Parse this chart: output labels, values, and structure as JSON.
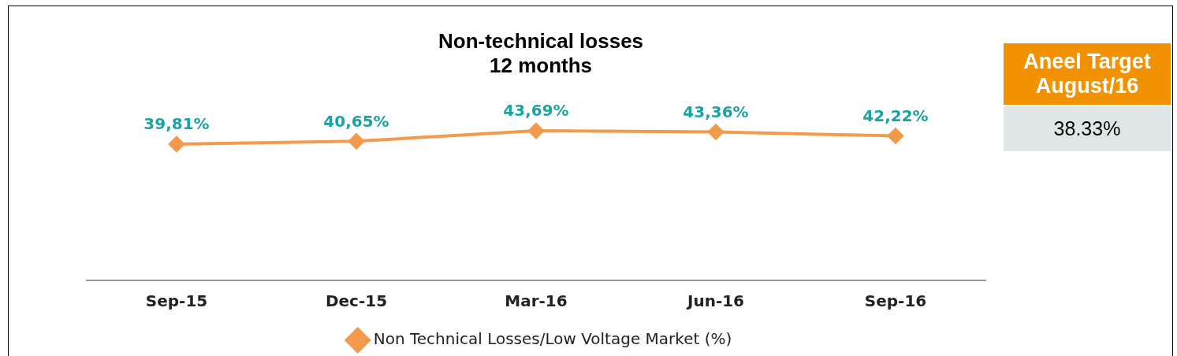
{
  "chart_data": {
    "type": "line",
    "title": "Non-technical losses\n12 months",
    "categories": [
      "Sep-15",
      "Dec-15",
      "Mar-16",
      "Jun-16",
      "Sep-16"
    ],
    "series": [
      {
        "name": "Non Technical Losses/Low Voltage Market (%)",
        "color": "#f39a4c",
        "values": [
          39.81,
          40.65,
          43.69,
          43.36,
          42.22
        ],
        "value_labels": [
          "39,81%",
          "40,65%",
          "43,69%",
          "43,36%",
          "42,22%"
        ]
      }
    ],
    "tick_labels": "x",
    "grid": false,
    "legend": "bottom",
    "marker": "diamond",
    "line_style": "solid",
    "annotations": [
      "Aneel Target August/16",
      "38.33%"
    ]
  }
}
